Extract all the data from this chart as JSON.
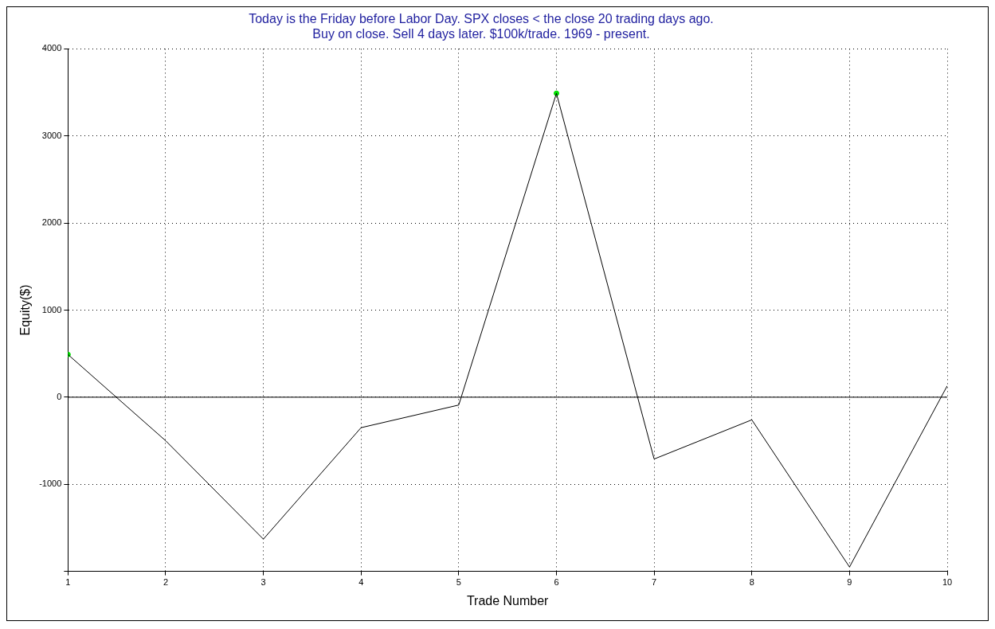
{
  "chart_data": {
    "type": "line",
    "title": [
      "Today is the Friday before Labor Day. SPX closes < the close 20 trading days ago.",
      "Buy on close. Sell 4 days later. $100k/trade. 1969 - present."
    ],
    "xlabel": "Trade Number",
    "ylabel": "Equity($)",
    "x": [
      1,
      2,
      3,
      4,
      5,
      6,
      7,
      8,
      9,
      10
    ],
    "series": [
      {
        "color": "#000000",
        "values": [
          490,
          -500,
          -1630,
          -350,
          -90,
          3490,
          -710,
          -260,
          -1950,
          130
        ]
      },
      {
        "type": "scatter",
        "color": "#00e000",
        "x": [
          1,
          6
        ],
        "values": [
          490,
          3490
        ]
      }
    ],
    "xlim": [
      1,
      10
    ],
    "xticks": [
      1,
      2,
      3,
      4,
      5,
      6,
      7,
      8,
      9,
      10
    ],
    "ylim": [
      -2000,
      4000
    ],
    "yticks": [
      {
        "value": -2000,
        "label": null
      },
      -1000,
      0,
      1000,
      2000,
      3000,
      4000
    ],
    "grid": true,
    "line_style": "solid",
    "legend": false,
    "ref_lines": [
      {
        "axis": "y",
        "value": 0,
        "color": "#000000"
      }
    ]
  }
}
